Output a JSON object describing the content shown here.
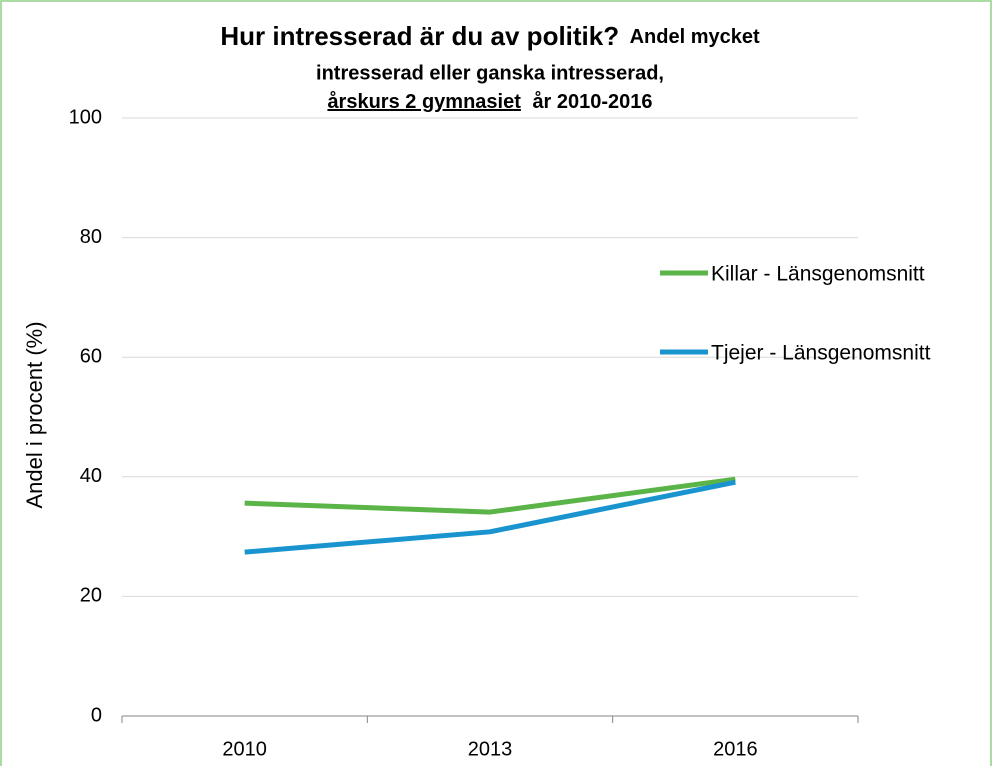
{
  "chart_data": {
    "type": "line",
    "title": "Hur intresserad är du av politik?",
    "subtitle": [
      "Andel mycket",
      "intresserad eller ganska intresserad,",
      "årskurs 2 gymnasiet",
      "år 2010-2016"
    ],
    "y_label": "Andel i procent (%)",
    "categories": [
      "2010",
      "2013",
      "2016"
    ],
    "series": [
      {
        "name": "Killar - Länsgenomsnitt",
        "color": "#5bb447",
        "values": [
          35.6,
          34.1,
          39.6
        ]
      },
      {
        "name": "Tjejer - Länsgenomsnitt",
        "color": "#1a94cf",
        "values": [
          27.4,
          30.8,
          39.1
        ]
      }
    ],
    "ylim": [
      0,
      100
    ],
    "yticks": [
      0,
      20,
      40,
      60,
      80,
      100
    ],
    "grid": true,
    "legend": "right"
  }
}
